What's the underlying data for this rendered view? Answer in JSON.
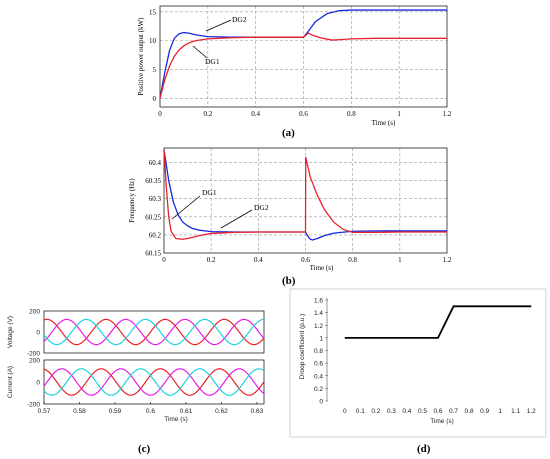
{
  "labels": {
    "a": "(a)",
    "b": "(b)",
    "c": "(c)",
    "d": "(d)"
  },
  "colors": {
    "dg1": "#e8232a",
    "dg2": "#1826e0",
    "phase_red": "#e8232a",
    "phase_magenta": "#e61ee6",
    "phase_cyan": "#1ed3de",
    "droop": "#000000"
  },
  "chart_data": [
    {
      "type": "line",
      "id": "a",
      "xlabel": "Time (s)",
      "ylabel": "Positive power output (kW)",
      "xlim": [
        0,
        1.2
      ],
      "ylim": [
        -1.5,
        16
      ],
      "xticks": [
        "0",
        "0.2",
        "0.4",
        "0.6",
        "0.8",
        "1",
        "1.2"
      ],
      "yticks": [
        "0",
        "5",
        "10",
        "15"
      ],
      "grid": true,
      "annotations": [
        "DG2",
        "DG1"
      ],
      "series": [
        {
          "name": "DG2",
          "x": [
            0,
            0.02,
            0.04,
            0.06,
            0.08,
            0.1,
            0.12,
            0.15,
            0.2,
            0.3,
            0.4,
            0.5,
            0.6,
            0.62,
            0.65,
            0.7,
            0.75,
            0.8,
            0.9,
            1.0,
            1.1,
            1.2
          ],
          "values": [
            0,
            4.5,
            8.3,
            10.4,
            11.2,
            11.4,
            11.3,
            11.0,
            10.7,
            10.6,
            10.6,
            10.6,
            10.6,
            11.6,
            13.3,
            14.7,
            15.2,
            15.3,
            15.3,
            15.3,
            15.3,
            15.3
          ]
        },
        {
          "name": "DG1",
          "x": [
            0,
            0.02,
            0.04,
            0.06,
            0.08,
            0.1,
            0.12,
            0.15,
            0.2,
            0.3,
            0.4,
            0.5,
            0.6,
            0.62,
            0.64,
            0.68,
            0.72,
            0.76,
            0.8,
            0.9,
            1.0,
            1.1,
            1.2
          ],
          "values": [
            0,
            3.2,
            5.6,
            7.3,
            8.4,
            9.1,
            9.6,
            10.0,
            10.3,
            10.5,
            10.6,
            10.6,
            10.6,
            11.3,
            10.9,
            10.4,
            10.1,
            10.2,
            10.3,
            10.4,
            10.4,
            10.4,
            10.4
          ]
        }
      ]
    },
    {
      "type": "line",
      "id": "b",
      "xlabel": "Time (s)",
      "ylabel": "Frequency (Hz)",
      "xlim": [
        0,
        1.2
      ],
      "ylim": [
        60.15,
        60.44
      ],
      "xticks": [
        "0",
        "0.2",
        "0.4",
        "0.6",
        "0.8",
        "1",
        "1.2"
      ],
      "yticks": [
        "60.15",
        "60.2",
        "60.25",
        "60.3",
        "60.35",
        "60.4"
      ],
      "grid": true,
      "annotations": [
        "DG1",
        "DG2"
      ],
      "series": [
        {
          "name": "DG2",
          "x": [
            0,
            0.02,
            0.04,
            0.06,
            0.08,
            0.1,
            0.12,
            0.15,
            0.2,
            0.3,
            0.4,
            0.5,
            0.6,
            0.61,
            0.62,
            0.63,
            0.65,
            0.68,
            0.72,
            0.8,
            0.9,
            1.0,
            1.1,
            1.2
          ],
          "values": [
            60.435,
            60.35,
            60.29,
            60.255,
            60.235,
            60.225,
            60.218,
            60.213,
            60.209,
            60.208,
            60.208,
            60.208,
            60.208,
            60.196,
            60.188,
            60.186,
            60.19,
            60.198,
            60.205,
            60.21,
            60.211,
            60.211,
            60.211,
            60.211
          ]
        },
        {
          "name": "DG1",
          "x": [
            0,
            0.01,
            0.02,
            0.03,
            0.05,
            0.08,
            0.1,
            0.15,
            0.2,
            0.3,
            0.4,
            0.5,
            0.6,
            0.601,
            0.62,
            0.65,
            0.68,
            0.72,
            0.76,
            0.8,
            0.9,
            1.0,
            1.1,
            1.2
          ],
          "values": [
            60.435,
            60.33,
            60.25,
            60.21,
            60.19,
            60.188,
            60.19,
            60.198,
            60.204,
            60.207,
            60.208,
            60.208,
            60.208,
            60.415,
            60.36,
            60.31,
            60.27,
            60.235,
            60.215,
            60.207,
            60.207,
            60.208,
            60.208,
            60.208
          ]
        }
      ]
    },
    {
      "type": "line",
      "id": "c-voltage",
      "ylabel": "Voltage (V)",
      "xlim": [
        0.57,
        0.632
      ],
      "ylim": [
        -200,
        200
      ],
      "yticks": [
        "200",
        "0",
        "-200"
      ],
      "amplitude": 120,
      "frequency_hz": 60,
      "series": [
        {
          "name": "",
          "phase_deg": 0,
          "color": "#e8232a"
        },
        {
          "name": "",
          "phase_deg": -120,
          "color": "#e61ee6"
        },
        {
          "name": "",
          "phase_deg": 120,
          "color": "#1ed3de"
        }
      ]
    },
    {
      "type": "line",
      "id": "c-current",
      "xlabel": "Time (s)",
      "ylabel": "Current (A)",
      "xlim": [
        0.57,
        0.632
      ],
      "ylim": [
        -200,
        200
      ],
      "xticks": [
        "0.57",
        "0.58",
        "0.59",
        "0.6",
        "0.61",
        "0.62",
        "0.63"
      ],
      "yticks": [
        "200",
        "0",
        "-200"
      ],
      "amplitude": 120,
      "frequency_hz": 60,
      "series": [
        {
          "name": "",
          "phase_deg": 30,
          "color": "#e8232a"
        },
        {
          "name": "",
          "phase_deg": -90,
          "color": "#e61ee6"
        },
        {
          "name": "",
          "phase_deg": 150,
          "color": "#1ed3de"
        }
      ]
    },
    {
      "type": "line",
      "id": "d",
      "xlabel": "Time (s)",
      "ylabel": "Droop coefficient (p.u.)",
      "xlim": [
        -0.05,
        1.25
      ],
      "ylim": [
        0,
        1.6
      ],
      "xticks": [
        "0",
        "0.1",
        "0.2",
        "0.3",
        "0.4",
        "0.5",
        "0.6",
        "0.7",
        "0.8",
        "0.9",
        "1",
        "1.1",
        "1.2"
      ],
      "yticks": [
        "0",
        "0.2",
        "0.4",
        "0.6",
        "0.8",
        "1",
        "1.2",
        "1.4",
        "1.6"
      ],
      "grid": false,
      "series": [
        {
          "name": "",
          "x": [
            0,
            0.6,
            0.7,
            1.2
          ],
          "values": [
            1,
            1,
            1.5,
            1.5
          ]
        }
      ]
    }
  ]
}
